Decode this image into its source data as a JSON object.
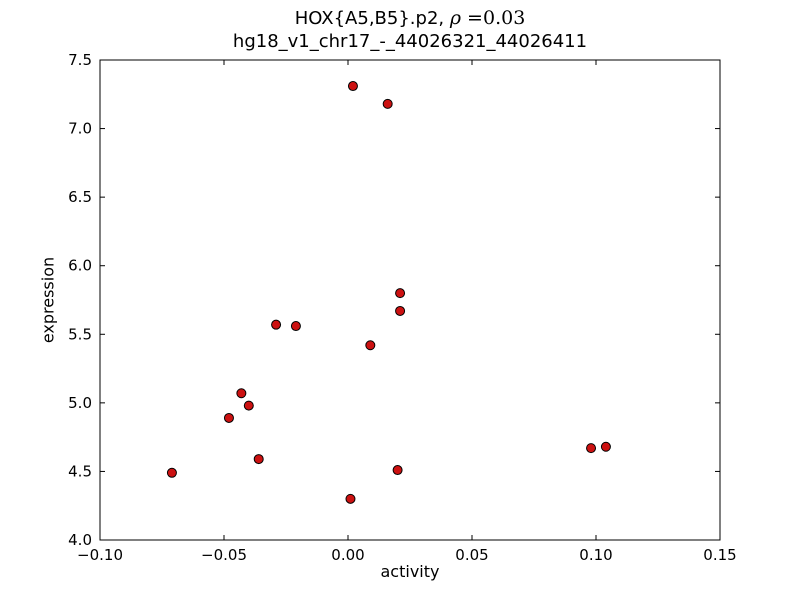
{
  "figure": {
    "title_line1_prefix": "HOX{A5,B5}.p2, ",
    "title_line1_rho": "ρ",
    "title_line1_eq": " =0.03",
    "title_line2": "hg18_v1_chr17_-_44026321_44026411"
  },
  "chart_data": {
    "type": "scatter",
    "title": "HOX{A5,B5}.p2, ρ=0.03 — hg18_v1_chr17_-_44026321_44026411",
    "xlabel": "activity",
    "ylabel": "expression",
    "xlim": [
      -0.1,
      0.15
    ],
    "ylim": [
      4.0,
      7.5
    ],
    "xticks": [
      -0.1,
      -0.05,
      0.0,
      0.05,
      0.1,
      0.15
    ],
    "yticks": [
      4.0,
      4.5,
      5.0,
      5.5,
      6.0,
      6.5,
      7.0,
      7.5
    ],
    "grid": false,
    "legend": null,
    "marker": {
      "shape": "circle",
      "fill": "#cc1111",
      "edge": "#000000",
      "radius": 4.5
    },
    "points": [
      [
        0.002,
        7.31
      ],
      [
        0.016,
        7.18
      ],
      [
        0.021,
        5.8
      ],
      [
        0.021,
        5.67
      ],
      [
        -0.029,
        5.57
      ],
      [
        -0.021,
        5.56
      ],
      [
        0.009,
        5.42
      ],
      [
        -0.043,
        5.07
      ],
      [
        -0.04,
        4.98
      ],
      [
        -0.048,
        4.89
      ],
      [
        -0.036,
        4.59
      ],
      [
        -0.071,
        4.49
      ],
      [
        0.098,
        4.67
      ],
      [
        0.104,
        4.68
      ],
      [
        0.02,
        4.51
      ],
      [
        0.001,
        4.3
      ]
    ]
  }
}
